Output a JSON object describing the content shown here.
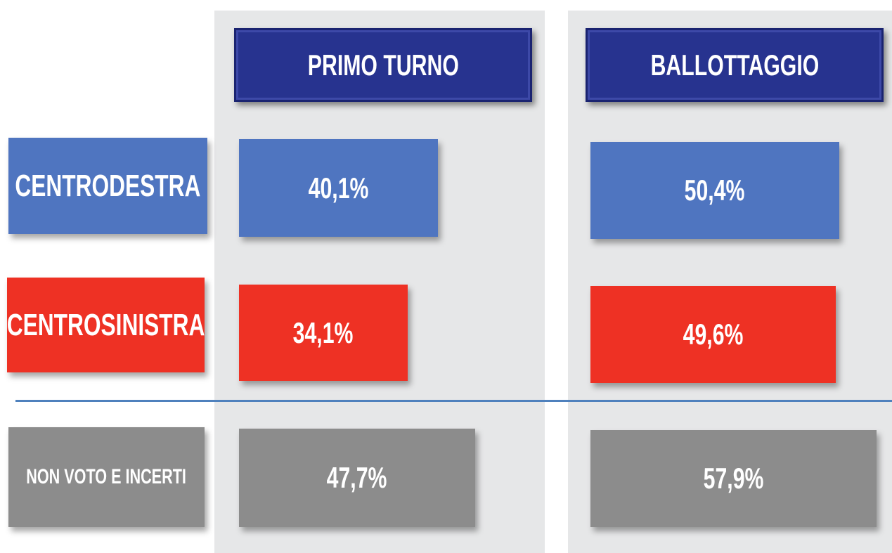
{
  "columns": [
    "PRIMO TURNO",
    "BALLOTTAGGIO"
  ],
  "rows": [
    {
      "label": "CENTRODESTRA",
      "values": [
        "40,1%",
        "50,4%"
      ]
    },
    {
      "label": "CENTROSINISTRA",
      "values": [
        "34,1%",
        "49,6%"
      ]
    },
    {
      "label": "NON VOTO E INCERTI",
      "values": [
        "47,7%",
        "57,9%"
      ]
    }
  ]
}
